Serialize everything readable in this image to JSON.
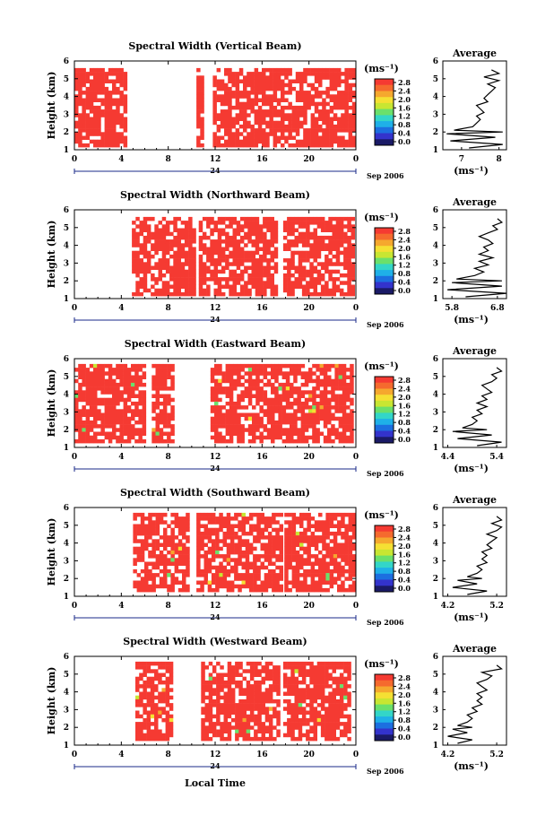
{
  "figure": {
    "xlabel": "Local Time",
    "date_label": "Sep 2006",
    "date_marker": "24",
    "units_label": "(ms⁻¹)",
    "avg_title": "Average",
    "avg_xlabel": "(ms⁻¹)",
    "ylabel": "Height (km)",
    "colors": {
      "red": "#f53a32",
      "colorbar": [
        "#1a1a66",
        "#3333cc",
        "#1c6fe0",
        "#1fb0e8",
        "#33d6c8",
        "#6be06b",
        "#c8e632",
        "#f5e033",
        "#f5a82e",
        "#f56a2e",
        "#f53a32"
      ]
    }
  },
  "chart_data": [
    {
      "type": "heatmap",
      "title": "Spectral Width (Vertical Beam)",
      "xlabel": "",
      "ylabel": "Height (km)",
      "xticks": [
        "0",
        "4",
        "8",
        "12",
        "16",
        "20",
        "0"
      ],
      "xlim": [
        0,
        24
      ],
      "ylim": [
        1,
        6
      ],
      "yticks": [
        "1",
        "2",
        "3",
        "4",
        "5",
        "6"
      ],
      "colorbar_ticks": [
        "2.8",
        "2.4",
        "2.0",
        "1.6",
        "1.2",
        "0.8",
        "0.4",
        "0.0"
      ],
      "coverage_bands": [
        [
          0,
          4.4
        ],
        [
          10.4,
          11.1
        ],
        [
          11.8,
          24
        ]
      ],
      "coverage_height": [
        1.1,
        5.6
      ],
      "average": {
        "xticks": [
          "7",
          "8"
        ],
        "xlim": [
          6.5,
          8.2
        ],
        "heights": [
          1.1,
          1.3,
          1.5,
          1.7,
          1.9,
          2.0,
          2.1,
          2.3,
          2.5,
          2.7,
          2.9,
          3.1,
          3.3,
          3.5,
          3.7,
          3.9,
          4.1,
          4.3,
          4.5,
          4.7,
          4.9,
          5.1,
          5.3,
          5.5
        ],
        "values": [
          7.2,
          8.1,
          6.7,
          7.9,
          6.6,
          8.1,
          6.8,
          7.3,
          7.4,
          7.5,
          7.4,
          7.6,
          7.5,
          7.4,
          7.7,
          7.6,
          7.7,
          7.8,
          7.9,
          7.7,
          8.0,
          7.6,
          8.0,
          7.8
        ]
      }
    },
    {
      "type": "heatmap",
      "title": "Spectral Width (Northward Beam)",
      "xlabel": "",
      "ylabel": "Height (km)",
      "xticks": [
        "0",
        "4",
        "8",
        "12",
        "16",
        "20",
        "0"
      ],
      "xlim": [
        0,
        24
      ],
      "ylim": [
        1,
        6
      ],
      "yticks": [
        "1",
        "2",
        "3",
        "4",
        "5",
        "6"
      ],
      "colorbar_ticks": [
        "2.8",
        "2.4",
        "2.0",
        "1.6",
        "1.2",
        "0.8",
        "0.4",
        "0.0"
      ],
      "coverage_bands": [
        [
          4.9,
          10.2
        ],
        [
          10.6,
          17.3
        ],
        [
          17.8,
          23.9
        ]
      ],
      "coverage_height": [
        1.2,
        5.6
      ],
      "average": {
        "xticks": [
          "5.8",
          "6.8"
        ],
        "xlim": [
          5.6,
          7.0
        ],
        "heights": [
          1.1,
          1.3,
          1.5,
          1.7,
          1.9,
          2.0,
          2.1,
          2.3,
          2.5,
          2.7,
          2.9,
          3.1,
          3.3,
          3.5,
          3.7,
          3.9,
          4.1,
          4.3,
          4.5,
          4.7,
          4.9,
          5.1,
          5.3,
          5.5
        ],
        "values": [
          6.1,
          7.0,
          5.7,
          6.9,
          5.8,
          6.9,
          5.9,
          6.3,
          6.5,
          6.3,
          6.6,
          6.4,
          6.7,
          6.4,
          6.6,
          6.5,
          6.7,
          6.6,
          6.4,
          6.6,
          6.8,
          6.7,
          6.9,
          6.8
        ]
      }
    },
    {
      "type": "heatmap",
      "title": "Spectral Width (Eastward Beam)",
      "xlabel": "",
      "ylabel": "Height (km)",
      "xticks": [
        "0",
        "4",
        "8",
        "12",
        "16",
        "20",
        "0"
      ],
      "xlim": [
        0,
        24
      ],
      "ylim": [
        1,
        6
      ],
      "yticks": [
        "1",
        "2",
        "3",
        "4",
        "5",
        "6"
      ],
      "colorbar_ticks": [
        "2.8",
        "2.4",
        "2.0",
        "1.6",
        "1.2",
        "0.8",
        "0.4",
        "0.0"
      ],
      "coverage_bands": [
        [
          0,
          6.0
        ],
        [
          6.6,
          8.6
        ],
        [
          11.6,
          23.8
        ]
      ],
      "coverage_height": [
        1.2,
        5.7
      ],
      "average": {
        "xticks": [
          "4.4",
          "5.4"
        ],
        "xlim": [
          4.3,
          5.6
        ],
        "heights": [
          1.1,
          1.3,
          1.5,
          1.7,
          1.9,
          2.0,
          2.1,
          2.3,
          2.5,
          2.7,
          2.9,
          3.1,
          3.3,
          3.5,
          3.7,
          3.9,
          4.1,
          4.3,
          4.5,
          4.7,
          4.9,
          5.1,
          5.3,
          5.5
        ],
        "values": [
          5.0,
          5.5,
          4.6,
          5.3,
          4.5,
          5.2,
          4.7,
          4.9,
          5.0,
          4.9,
          5.1,
          5.0,
          5.2,
          5.0,
          5.2,
          5.1,
          5.3,
          5.2,
          5.1,
          5.3,
          5.4,
          5.3,
          5.5,
          5.4
        ]
      }
    },
    {
      "type": "heatmap",
      "title": "Spectral Width (Southward Beam)",
      "xlabel": "",
      "ylabel": "Height (km)",
      "xticks": [
        "0",
        "4",
        "8",
        "12",
        "16",
        "20",
        "0"
      ],
      "xlim": [
        0,
        24
      ],
      "ylim": [
        1,
        6
      ],
      "yticks": [
        "1",
        "2",
        "3",
        "4",
        "5",
        "6"
      ],
      "colorbar_ticks": [
        "2.8",
        "2.4",
        "2.0",
        "1.6",
        "1.2",
        "0.8",
        "0.4",
        "0.0"
      ],
      "coverage_bands": [
        [
          5.0,
          9.8
        ],
        [
          10.4,
          17.6
        ],
        [
          17.9,
          23.9
        ]
      ],
      "coverage_height": [
        1.2,
        5.7
      ],
      "average": {
        "xticks": [
          "4.2",
          "5.2"
        ],
        "xlim": [
          4.1,
          5.4
        ],
        "heights": [
          1.1,
          1.3,
          1.5,
          1.7,
          1.9,
          2.0,
          2.1,
          2.3,
          2.5,
          2.7,
          2.9,
          3.1,
          3.3,
          3.5,
          3.7,
          3.9,
          4.1,
          4.3,
          4.5,
          4.7,
          4.9,
          5.1,
          5.3,
          5.5
        ],
        "values": [
          4.6,
          5.0,
          4.3,
          4.8,
          4.4,
          4.9,
          4.6,
          4.8,
          4.9,
          4.8,
          5.0,
          4.9,
          5.0,
          4.9,
          5.1,
          5.0,
          5.1,
          5.2,
          5.0,
          5.2,
          5.3,
          5.1,
          5.3,
          5.2
        ]
      }
    },
    {
      "type": "heatmap",
      "title": "Spectral Width (Westward Beam)",
      "xlabel": "Local Time",
      "ylabel": "Height (km)",
      "xticks": [
        "0",
        "4",
        "8",
        "12",
        "16",
        "20",
        "0"
      ],
      "xlim": [
        0,
        24
      ],
      "ylim": [
        1,
        6
      ],
      "yticks": [
        "1",
        "2",
        "3",
        "4",
        "5",
        "6"
      ],
      "colorbar_ticks": [
        "2.8",
        "2.4",
        "2.0",
        "1.6",
        "1.2",
        "0.8",
        "0.4",
        "0.0"
      ],
      "coverage_bands": [
        [
          5.2,
          8.3
        ],
        [
          10.8,
          17.5
        ],
        [
          17.8,
          23.6
        ]
      ],
      "coverage_height": [
        1.2,
        5.7
      ],
      "average": {
        "xticks": [
          "4.2",
          "5.2"
        ],
        "xlim": [
          4.1,
          5.4
        ],
        "heights": [
          1.1,
          1.3,
          1.5,
          1.7,
          1.9,
          2.0,
          2.1,
          2.3,
          2.5,
          2.7,
          2.9,
          3.1,
          3.3,
          3.5,
          3.7,
          3.9,
          4.1,
          4.3,
          4.5,
          4.7,
          4.9,
          5.1,
          5.3,
          5.5
        ],
        "values": [
          4.4,
          4.7,
          4.2,
          4.6,
          4.3,
          4.7,
          4.4,
          4.6,
          4.7,
          4.6,
          4.8,
          4.7,
          4.9,
          4.8,
          4.9,
          4.8,
          5.0,
          4.9,
          4.8,
          5.0,
          5.1,
          4.9,
          5.3,
          5.2
        ]
      }
    }
  ]
}
